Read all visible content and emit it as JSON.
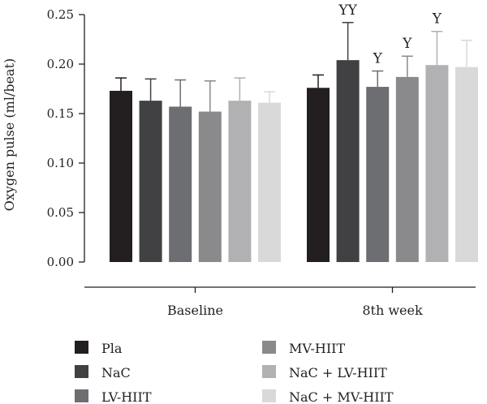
{
  "chart_data": {
    "type": "bar",
    "ylabel": "Oxygen pulse (ml/beat)",
    "ylim": [
      0,
      0.25
    ],
    "yticks": [
      "0.00",
      "0.05",
      "0.10",
      "0.15",
      "0.20",
      "0.25"
    ],
    "ytick_values": [
      0,
      0.05,
      0.1,
      0.15,
      0.2,
      0.25
    ],
    "categories": [
      "Baseline",
      "8th week"
    ],
    "series": [
      {
        "name": "Pla",
        "color": "#231f20",
        "values": [
          0.173,
          0.176
        ],
        "errors": [
          0.013,
          0.013
        ],
        "annotations": [
          "",
          ""
        ]
      },
      {
        "name": "NaC",
        "color": "#414042",
        "values": [
          0.163,
          0.204
        ],
        "errors": [
          0.022,
          0.038
        ],
        "annotations": [
          "",
          "YY"
        ]
      },
      {
        "name": "LV-HIIT",
        "color": "#6d6e71",
        "values": [
          0.157,
          0.177
        ],
        "errors": [
          0.027,
          0.016
        ],
        "annotations": [
          "",
          "Y"
        ]
      },
      {
        "name": "MV-HIIT",
        "color": "#8a8a8d",
        "values": [
          0.152,
          0.187
        ],
        "errors": [
          0.031,
          0.021
        ],
        "annotations": [
          "",
          "Y"
        ]
      },
      {
        "name": "NaC + LV-HIIT",
        "color": "#b1b1b3",
        "values": [
          0.163,
          0.199
        ],
        "errors": [
          0.023,
          0.034
        ],
        "annotations": [
          "",
          "Y"
        ]
      },
      {
        "name": "NaC + MV-HIIT",
        "color": "#d9d9da",
        "values": [
          0.161,
          0.197
        ],
        "errors": [
          0.011,
          0.027
        ],
        "annotations": [
          "",
          ""
        ]
      }
    ],
    "grid": false,
    "legend_position": "bottom-left"
  }
}
